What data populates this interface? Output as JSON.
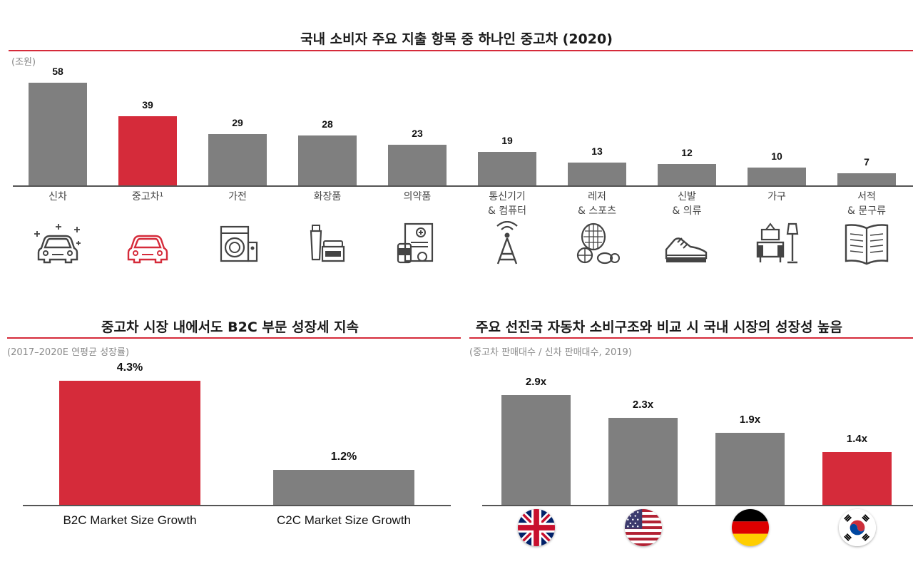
{
  "colors": {
    "accent": "#d52b3a",
    "bar": "#7f7f7f",
    "axis": "#555555"
  },
  "top": {
    "title": "국내 소비자 주요 지출 항목 중 하나인 중고차 (2020)",
    "unit": "(조원)",
    "icons": [
      "sparkle-car-icon",
      "car-icon",
      "washing-machine-icon",
      "cosmetics-icon",
      "medicine-icon",
      "antenna-tower-icon",
      "sports-balls-icon",
      "sneaker-icon",
      "furniture-lamp-icon",
      "open-book-icon"
    ]
  },
  "bottom_left": {
    "title": "중고차 시장 내에서도 B2C 부문 성장세 지속",
    "unit": "(2017–2020E 연평균 성장률)"
  },
  "bottom_right": {
    "title": "주요 선진국 자동차 소비구조와 비교 시 국내 시장의 성장성 높음",
    "unit": "(중고차 판매대수 / 신차 판매대수, 2019)",
    "flags": [
      "uk-flag-icon",
      "us-flag-icon",
      "germany-flag-icon",
      "korea-flag-icon"
    ]
  },
  "chart_data": [
    {
      "type": "bar",
      "title": "국내 소비자 주요 지출 항목 중 하나인 중고차 (2020)",
      "ylabel": "(조원)",
      "ylim": [
        0,
        58
      ],
      "categories": [
        [
          "신차"
        ],
        [
          "중고차¹"
        ],
        [
          "가전"
        ],
        [
          "화장품"
        ],
        [
          "의약품"
        ],
        [
          "통신기기",
          "& 컴퓨터"
        ],
        [
          "레저",
          "& 스포츠"
        ],
        [
          "신발",
          "& 의류"
        ],
        [
          "가구"
        ],
        [
          "서적",
          "& 문구류"
        ]
      ],
      "values": [
        58,
        39,
        29,
        28,
        23,
        19,
        13,
        12,
        10,
        7
      ],
      "value_labels": [
        "58",
        "39",
        "29",
        "28",
        "23",
        "19",
        "13",
        "12",
        "10",
        "7"
      ],
      "highlight_index": 1
    },
    {
      "type": "bar",
      "title": "중고차 시장 내에서도 B2C 부문 성장세 지속",
      "ylabel": "(2017–2020E 연평균 성장률)",
      "ylim": [
        0,
        4.3
      ],
      "categories": [
        "B2C Market Size Growth",
        "C2C Market Size Growth"
      ],
      "values": [
        4.3,
        1.2
      ],
      "value_labels": [
        "4.3%",
        "1.2%"
      ],
      "highlight_index": 0
    },
    {
      "type": "bar",
      "title": "주요 선진국 자동차 소비구조와 비교 시 국내 시장의 성장성 높음",
      "ylabel": "(중고차 판매대수 / 신차 판매대수, 2019)",
      "ylim": [
        0,
        2.9
      ],
      "categories": [
        "UK",
        "US",
        "Germany",
        "Korea"
      ],
      "values": [
        2.9,
        2.3,
        1.9,
        1.4
      ],
      "value_labels": [
        "2.9x",
        "2.3x",
        "1.9x",
        "1.4x"
      ],
      "highlight_index": 3
    }
  ]
}
